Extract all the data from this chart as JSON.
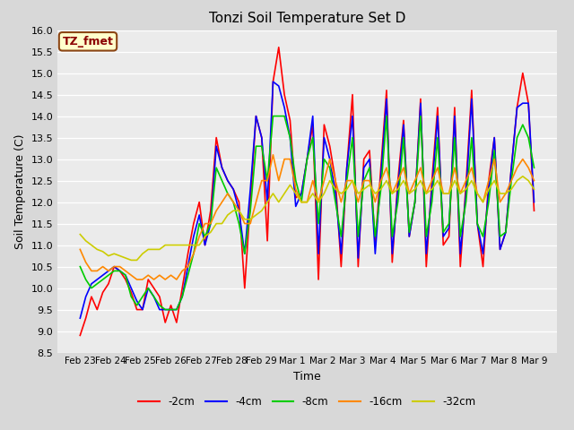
{
  "title": "Tonzi Soil Temperature Set D",
  "xlabel": "Time",
  "ylabel": "Soil Temperature (C)",
  "ylim": [
    8.5,
    16.0
  ],
  "legend_label": "TZ_fmet",
  "series": {
    "-2cm": {
      "color": "#ff0000",
      "lw": 1.2,
      "values": [
        8.9,
        9.3,
        9.8,
        9.5,
        9.9,
        10.1,
        10.5,
        10.4,
        10.2,
        9.9,
        9.5,
        9.5,
        10.2,
        10.0,
        9.8,
        9.2,
        9.6,
        9.2,
        10.0,
        10.8,
        11.5,
        12.0,
        11.0,
        11.8,
        13.5,
        12.8,
        12.5,
        12.3,
        12.0,
        10.0,
        12.0,
        14.0,
        13.5,
        11.1,
        14.8,
        15.6,
        14.5,
        13.9,
        12.1,
        12.2,
        13.0,
        13.8,
        10.2,
        13.8,
        13.3,
        12.5,
        10.5,
        12.8,
        14.5,
        10.5,
        13.0,
        13.2,
        11.0,
        12.8,
        14.6,
        10.6,
        12.5,
        13.9,
        11.2,
        12.0,
        14.4,
        10.5,
        12.5,
        14.2,
        11.0,
        11.2,
        14.2,
        10.5,
        12.4,
        14.6,
        11.5,
        10.5,
        12.5,
        13.5,
        10.9,
        11.3,
        12.8,
        14.2,
        15.0,
        14.3,
        11.8
      ]
    },
    "-4cm": {
      "color": "#0000ff",
      "lw": 1.2,
      "values": [
        9.3,
        9.8,
        10.1,
        10.2,
        10.3,
        10.4,
        10.5,
        10.4,
        10.3,
        10.0,
        9.7,
        9.5,
        10.0,
        9.8,
        9.5,
        9.5,
        9.5,
        9.5,
        9.8,
        10.5,
        11.2,
        11.7,
        11.0,
        11.5,
        13.3,
        12.8,
        12.5,
        12.3,
        11.8,
        10.8,
        12.3,
        14.0,
        13.5,
        12.0,
        14.8,
        14.7,
        14.2,
        13.5,
        11.9,
        12.2,
        13.0,
        14.0,
        10.8,
        13.5,
        13.0,
        12.2,
        10.8,
        12.8,
        14.0,
        10.7,
        12.8,
        13.0,
        10.8,
        12.6,
        14.4,
        10.8,
        12.3,
        13.8,
        11.2,
        12.0,
        14.3,
        10.8,
        12.3,
        14.0,
        11.2,
        11.4,
        14.0,
        10.8,
        12.2,
        14.4,
        11.5,
        10.8,
        12.3,
        13.5,
        10.9,
        11.3,
        12.8,
        14.2,
        14.3,
        14.3,
        12.0
      ]
    },
    "-8cm": {
      "color": "#00cc00",
      "lw": 1.2,
      "values": [
        10.5,
        10.2,
        10.0,
        10.1,
        10.2,
        10.3,
        10.4,
        10.4,
        10.3,
        9.8,
        9.6,
        9.8,
        10.0,
        9.8,
        9.6,
        9.5,
        9.5,
        9.5,
        9.8,
        10.3,
        10.8,
        11.5,
        11.2,
        11.5,
        12.8,
        12.5,
        12.2,
        12.0,
        11.5,
        10.8,
        11.8,
        13.3,
        13.3,
        12.5,
        14.0,
        14.0,
        14.0,
        13.5,
        12.5,
        12.0,
        13.0,
        13.5,
        11.5,
        13.0,
        12.8,
        12.0,
        11.2,
        12.5,
        13.5,
        11.2,
        12.5,
        12.8,
        11.2,
        12.3,
        14.0,
        11.2,
        12.0,
        13.5,
        11.3,
        12.0,
        14.0,
        11.2,
        12.0,
        13.5,
        11.3,
        11.5,
        13.5,
        11.2,
        12.0,
        13.5,
        11.5,
        11.2,
        12.0,
        13.2,
        11.2,
        11.3,
        12.5,
        13.5,
        13.8,
        13.5,
        12.8
      ]
    },
    "-16cm": {
      "color": "#ff8800",
      "lw": 1.2,
      "values": [
        10.9,
        10.6,
        10.4,
        10.4,
        10.5,
        10.4,
        10.5,
        10.5,
        10.4,
        10.3,
        10.2,
        10.2,
        10.3,
        10.2,
        10.3,
        10.2,
        10.3,
        10.2,
        10.4,
        10.5,
        10.8,
        11.2,
        11.5,
        11.5,
        11.8,
        12.0,
        12.2,
        12.0,
        11.8,
        11.5,
        11.5,
        12.0,
        12.5,
        12.5,
        13.1,
        12.5,
        13.0,
        13.0,
        12.3,
        12.0,
        12.0,
        12.5,
        12.0,
        12.5,
        13.0,
        12.5,
        12.0,
        12.5,
        12.5,
        12.0,
        12.5,
        12.5,
        12.0,
        12.5,
        12.8,
        12.2,
        12.5,
        12.8,
        12.2,
        12.5,
        12.8,
        12.2,
        12.5,
        12.8,
        12.2,
        12.2,
        12.8,
        12.2,
        12.5,
        12.8,
        12.2,
        12.0,
        12.5,
        13.0,
        12.0,
        12.2,
        12.5,
        12.8,
        13.0,
        12.8,
        12.5
      ]
    },
    "-32cm": {
      "color": "#cccc00",
      "lw": 1.2,
      "values": [
        11.25,
        11.1,
        11.0,
        10.9,
        10.85,
        10.75,
        10.8,
        10.75,
        10.7,
        10.65,
        10.65,
        10.8,
        10.9,
        10.9,
        10.9,
        11.0,
        11.0,
        11.0,
        11.0,
        11.0,
        11.0,
        11.0,
        11.2,
        11.3,
        11.5,
        11.5,
        11.7,
        11.8,
        11.8,
        11.6,
        11.6,
        11.7,
        11.8,
        12.0,
        12.2,
        12.0,
        12.2,
        12.4,
        12.2,
        12.0,
        12.0,
        12.2,
        12.0,
        12.2,
        12.5,
        12.3,
        12.2,
        12.3,
        12.5,
        12.2,
        12.3,
        12.4,
        12.2,
        12.3,
        12.5,
        12.2,
        12.3,
        12.5,
        12.2,
        12.3,
        12.5,
        12.2,
        12.3,
        12.5,
        12.2,
        12.2,
        12.5,
        12.2,
        12.3,
        12.5,
        12.2,
        12.0,
        12.3,
        12.5,
        12.2,
        12.2,
        12.3,
        12.5,
        12.6,
        12.5,
        12.3
      ]
    }
  },
  "tick_labels": [
    "Feb 23",
    "Feb 24",
    "Feb 25",
    "Feb 26",
    "Feb 27",
    "Feb 28",
    "Feb 29",
    "Mar 1",
    "Mar 2",
    "Mar 3",
    "Mar 4",
    "Mar 5",
    "Mar 6",
    "Mar 7",
    "Mar 8",
    "Mar 9"
  ],
  "yticks": [
    8.5,
    9.0,
    9.5,
    10.0,
    10.5,
    11.0,
    11.5,
    12.0,
    12.5,
    13.0,
    13.5,
    14.0,
    14.5,
    15.0,
    15.5,
    16.0
  ]
}
